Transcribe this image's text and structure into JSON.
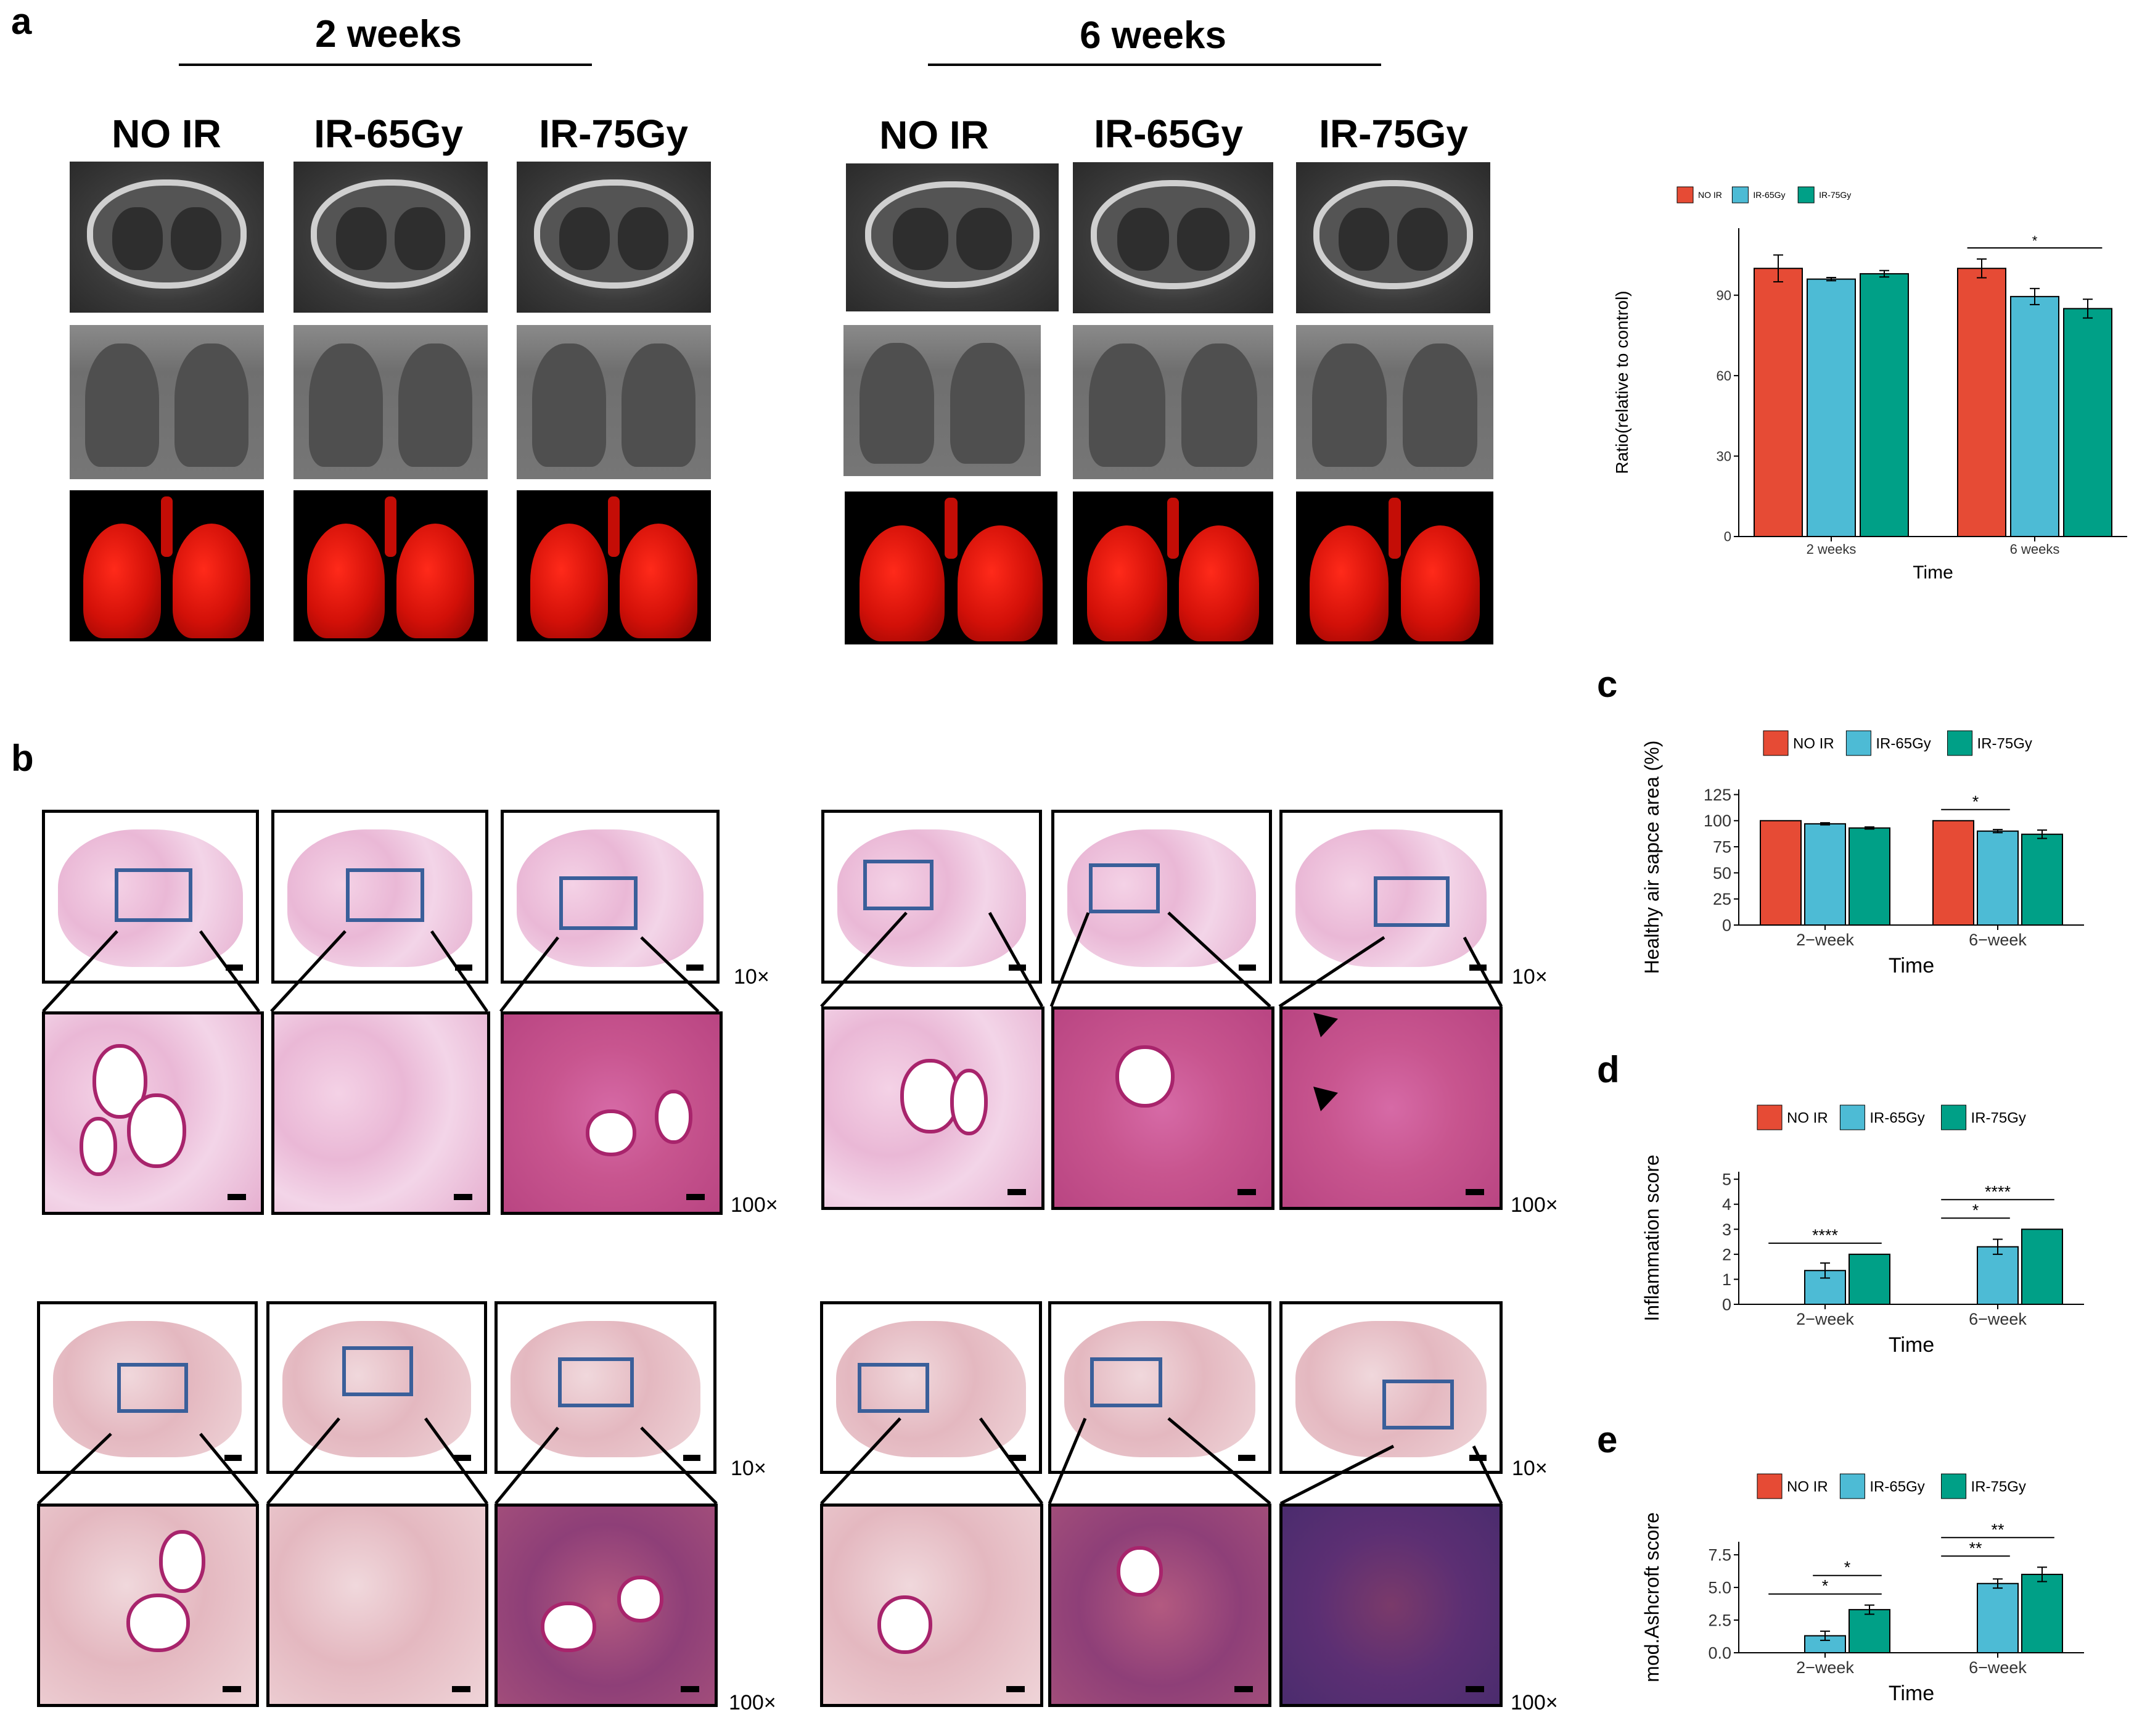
{
  "panel_letters": {
    "a": "a",
    "b": "b",
    "c": "c",
    "d": "d",
    "e": "e"
  },
  "panel_a": {
    "timepoints": [
      "2 weeks",
      "6 weeks"
    ],
    "groups": [
      "NO IR",
      "IR-65Gy",
      "IR-75Gy"
    ]
  },
  "panel_b": {
    "mag_low": "10×",
    "mag_high": "100×"
  },
  "colors": {
    "no_ir": "#e64b35",
    "ir65": "#4dbbd5",
    "ir75": "#00a087"
  },
  "chart_data": [
    {
      "id": "a-chart",
      "type": "bar",
      "categories": [
        "2 weeks",
        "6 weeks"
      ],
      "series": [
        {
          "name": "NO IR",
          "values": [
            100,
            100
          ],
          "err": [
            5,
            3.5
          ]
        },
        {
          "name": "IR-65Gy",
          "values": [
            96,
            89.5
          ],
          "err": [
            0.6,
            3
          ]
        },
        {
          "name": "IR-75Gy",
          "values": [
            98,
            85
          ],
          "err": [
            1.2,
            3.5
          ]
        }
      ],
      "xlabel": "Time",
      "ylabel": "Ratio(relative to control)",
      "ylim": [
        0,
        115
      ],
      "yticks": [
        0,
        30,
        60,
        90
      ],
      "significance": [
        {
          "category": 1,
          "from": 0,
          "to": 2,
          "label": "*"
        }
      ],
      "legend_position": "top"
    },
    {
      "id": "c-chart",
      "type": "bar",
      "categories": [
        "2−week",
        "6−week"
      ],
      "series": [
        {
          "name": "NO IR",
          "values": [
            100,
            100
          ],
          "err": [
            0,
            0
          ]
        },
        {
          "name": "IR-65Gy",
          "values": [
            97,
            90
          ],
          "err": [
            1,
            1.5
          ]
        },
        {
          "name": "IR-75Gy",
          "values": [
            93,
            87
          ],
          "err": [
            1,
            4
          ]
        }
      ],
      "xlabel": "Time",
      "ylabel": "Healthy air sapce area (%)",
      "ylim": [
        0,
        130
      ],
      "yticks": [
        0,
        25,
        50,
        75,
        100,
        125
      ],
      "significance": [
        {
          "category": 1,
          "from": 0,
          "to": 1,
          "label": "*"
        }
      ],
      "legend_position": "top"
    },
    {
      "id": "d-chart",
      "type": "bar",
      "categories": [
        "2−week",
        "6−week"
      ],
      "series": [
        {
          "name": "NO IR",
          "values": [
            0,
            0
          ],
          "err": [
            0,
            0
          ]
        },
        {
          "name": "IR-65Gy",
          "values": [
            1.35,
            2.3
          ],
          "err": [
            0.3,
            0.3
          ]
        },
        {
          "name": "IR-75Gy",
          "values": [
            2,
            3
          ],
          "err": [
            0,
            0
          ]
        }
      ],
      "xlabel": "Time",
      "ylabel": "Inflammation score",
      "ylim": [
        0,
        5.3
      ],
      "yticks": [
        0,
        1,
        2,
        3,
        4,
        5
      ],
      "significance": [
        {
          "category": 0,
          "from": 0,
          "to": 2,
          "label": "****"
        },
        {
          "category": 1,
          "from": 0,
          "to": 1,
          "label": "*"
        },
        {
          "category": 1,
          "from": 0,
          "to": 2,
          "label": "****"
        }
      ],
      "legend_position": "top"
    },
    {
      "id": "e-chart",
      "type": "bar",
      "categories": [
        "2−week",
        "6−week"
      ],
      "series": [
        {
          "name": "NO IR",
          "values": [
            0,
            0
          ],
          "err": [
            0,
            0
          ]
        },
        {
          "name": "IR-65Gy",
          "values": [
            1.3,
            5.3
          ],
          "err": [
            0.35,
            0.35
          ]
        },
        {
          "name": "IR-75Gy",
          "values": [
            3.3,
            6
          ],
          "err": [
            0.35,
            0.55
          ]
        }
      ],
      "xlabel": "Time",
      "ylabel": "mod.Ashcroft score",
      "ylim": [
        0,
        8.5
      ],
      "yticks": [
        0,
        2.5,
        5,
        7.5
      ],
      "ytick_labels": [
        "0.0",
        "2.5",
        "5.0",
        "7.5"
      ],
      "significance": [
        {
          "category": 0,
          "from": 0,
          "to": 2,
          "label": "*"
        },
        {
          "category": 0,
          "from": 1,
          "to": 2,
          "label": "*"
        },
        {
          "category": 1,
          "from": 0,
          "to": 1,
          "label": "**"
        },
        {
          "category": 1,
          "from": 0,
          "to": 2,
          "label": "**"
        }
      ],
      "legend_position": "top"
    }
  ]
}
